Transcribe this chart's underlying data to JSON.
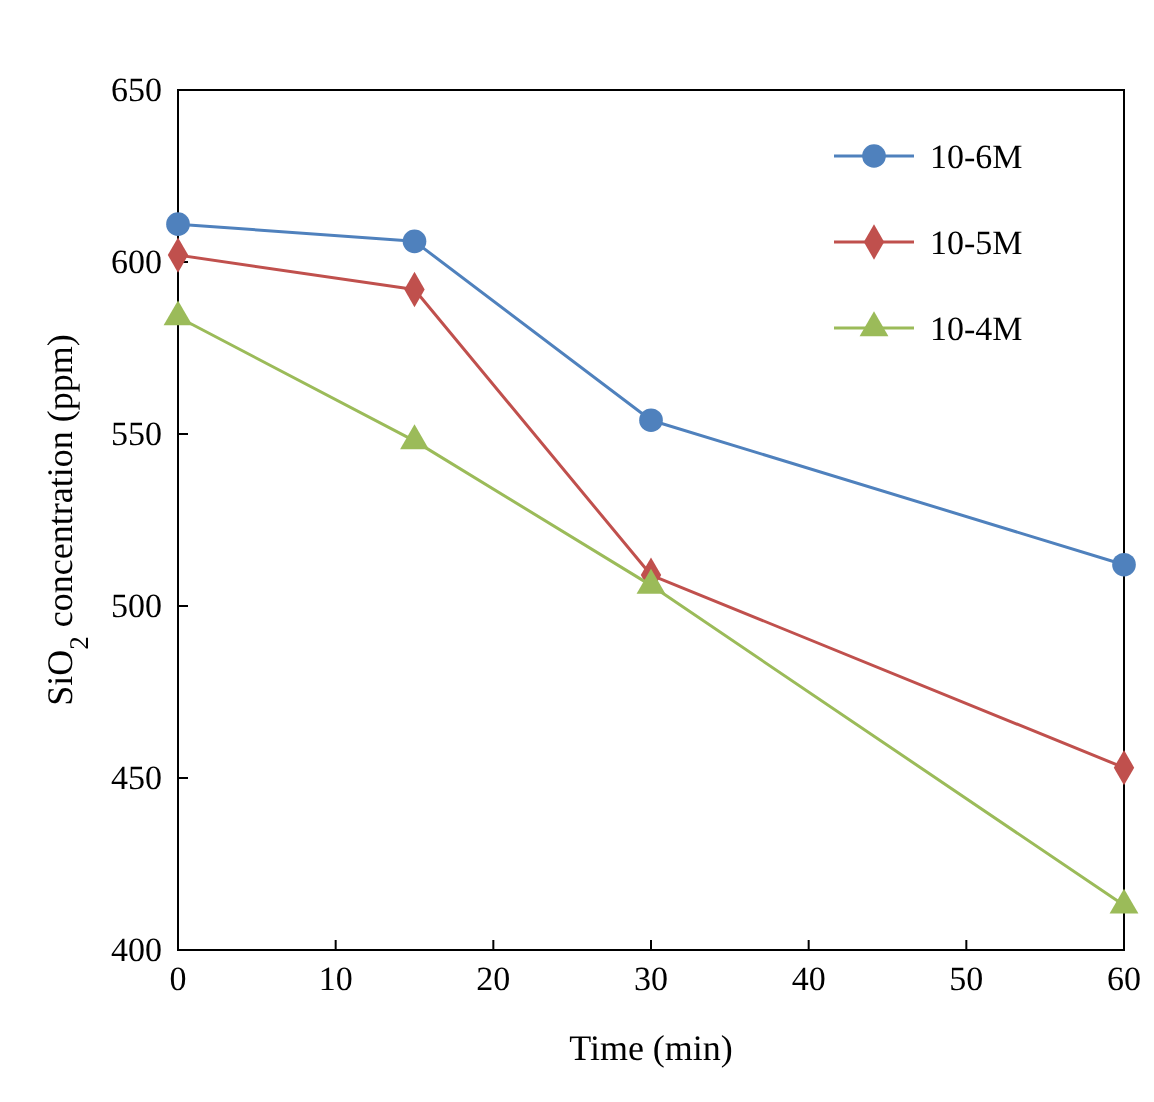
{
  "chart_data": {
    "type": "line",
    "xlabel": "Time (min)",
    "ylabel": "SiO$_{2}$ concentration (ppm)",
    "x": [
      0,
      15,
      30,
      60
    ],
    "xlim": [
      0,
      60
    ],
    "xticks": [
      0,
      10,
      20,
      30,
      40,
      50,
      60
    ],
    "ylim": [
      400,
      650
    ],
    "yticks": [
      400,
      450,
      500,
      550,
      600,
      650
    ],
    "grid": false,
    "legend": "top right",
    "line_style": "solid",
    "series": [
      {
        "name": "10-6M",
        "color": "#4f81bd",
        "marker": "circle",
        "values": [
          611,
          606,
          554,
          512
        ]
      },
      {
        "name": "10-5M",
        "color": "#c0504d",
        "marker": "diamond",
        "values": [
          602,
          592,
          509,
          453
        ]
      },
      {
        "name": "10-4M",
        "color": "#9bbb59",
        "marker": "triangle",
        "values": [
          584,
          548,
          506,
          413
        ]
      }
    ]
  }
}
